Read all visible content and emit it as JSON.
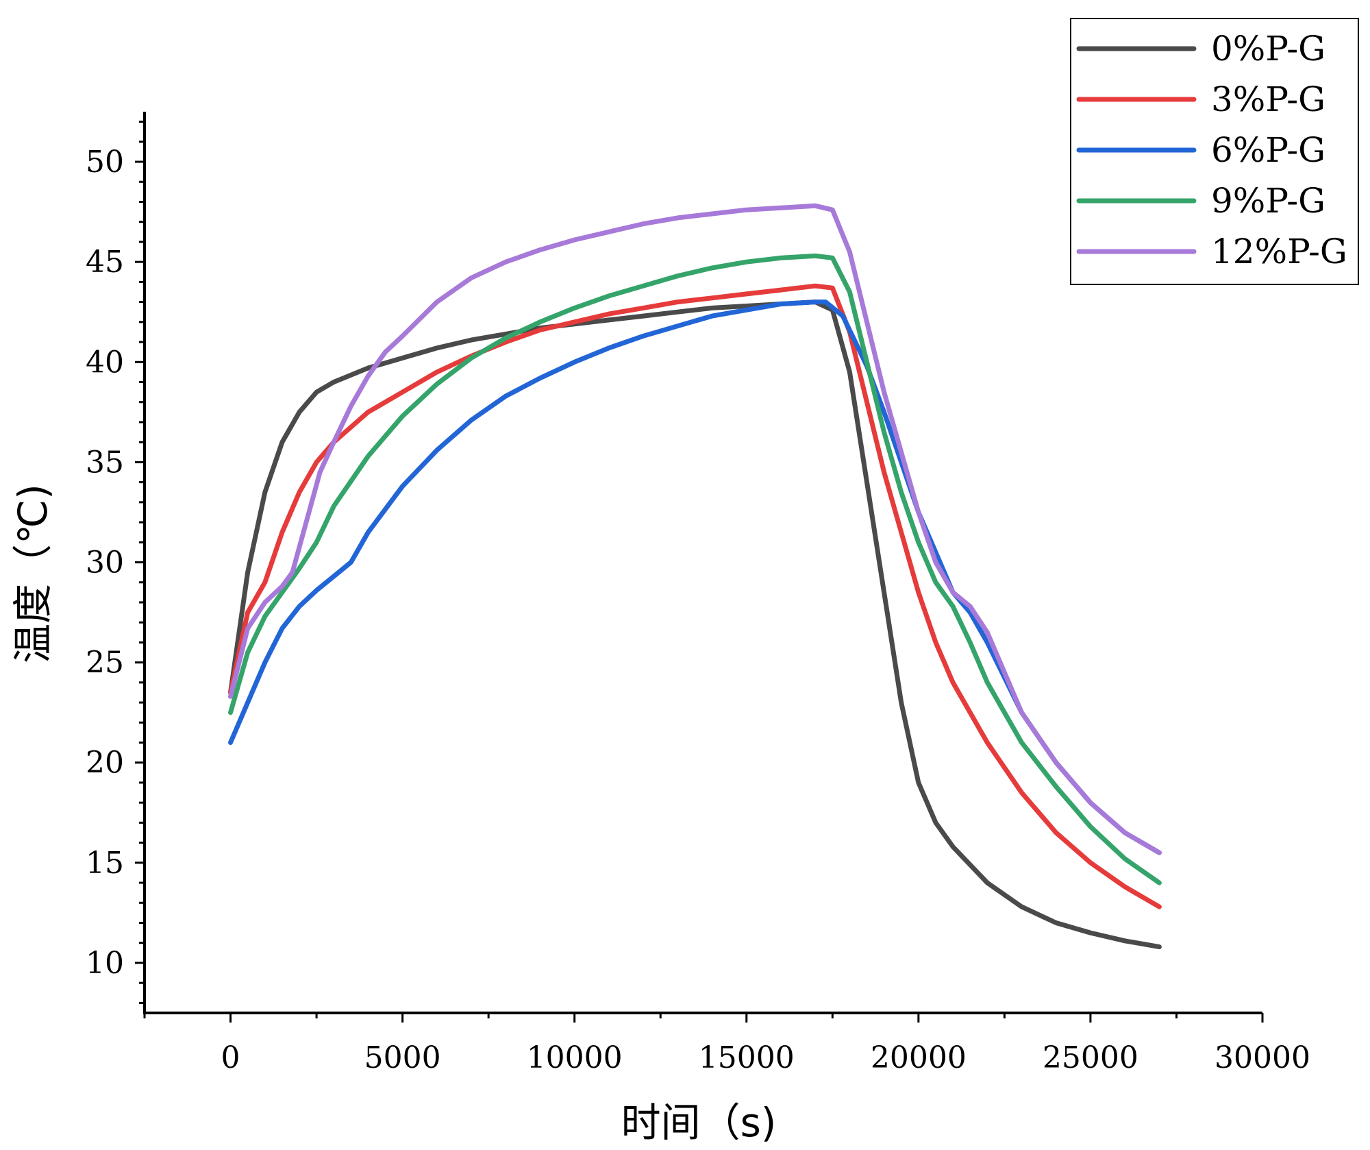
{
  "chart_data": {
    "type": "line",
    "title": "",
    "xlabel": "时间（s)",
    "ylabel": "温度（℃)",
    "xlim": [
      -2500,
      30000
    ],
    "ylim": [
      7.5,
      52.5
    ],
    "xticks": [
      0,
      5000,
      10000,
      15000,
      20000,
      25000,
      30000
    ],
    "yticks": [
      10,
      15,
      20,
      25,
      30,
      35,
      40,
      45,
      50
    ],
    "x_tick_labels": [
      "0",
      "5000",
      "10000",
      "15000",
      "20000",
      "25000",
      "30000"
    ],
    "y_tick_labels": [
      "10",
      "15",
      "20",
      "25",
      "30",
      "35",
      "40",
      "45",
      "50"
    ],
    "legend_position": "top-right",
    "series": [
      {
        "name": "0%P-G",
        "color": "#4a4a4a",
        "x": [
          0,
          500,
          1000,
          1500,
          2000,
          2500,
          3000,
          4000,
          5000,
          6000,
          7000,
          8000,
          9000,
          10000,
          11000,
          12000,
          13000,
          14000,
          15000,
          16000,
          17000,
          17500,
          18000,
          18500,
          19000,
          19500,
          20000,
          20500,
          21000,
          22000,
          23000,
          24000,
          25000,
          26000,
          27000
        ],
        "y": [
          23.5,
          29.5,
          33.5,
          36.0,
          37.5,
          38.5,
          39.0,
          39.7,
          40.2,
          40.7,
          41.1,
          41.4,
          41.7,
          41.9,
          42.1,
          42.3,
          42.5,
          42.7,
          42.8,
          42.9,
          43.0,
          42.6,
          39.5,
          34.0,
          28.5,
          23.0,
          19.0,
          17.0,
          15.8,
          14.0,
          12.8,
          12.0,
          11.5,
          11.1,
          10.8
        ]
      },
      {
        "name": "3%P-G",
        "color": "#e63b3b",
        "x": [
          0,
          500,
          1000,
          1500,
          2000,
          2500,
          3000,
          4000,
          5000,
          6000,
          7000,
          8000,
          9000,
          10000,
          11000,
          12000,
          13000,
          14000,
          15000,
          16000,
          17000,
          17500,
          18000,
          18500,
          19000,
          19500,
          20000,
          20500,
          21000,
          22000,
          23000,
          24000,
          25000,
          26000,
          27000
        ],
        "y": [
          23.5,
          27.5,
          29.0,
          31.5,
          33.5,
          35.0,
          36.0,
          37.5,
          38.5,
          39.5,
          40.3,
          41.0,
          41.6,
          42.0,
          42.4,
          42.7,
          43.0,
          43.2,
          43.4,
          43.6,
          43.8,
          43.7,
          41.5,
          38.0,
          34.5,
          31.5,
          28.5,
          26.0,
          24.0,
          21.0,
          18.5,
          16.5,
          15.0,
          13.8,
          12.8
        ]
      },
      {
        "name": "6%P-G",
        "color": "#2265d6",
        "x": [
          0,
          500,
          1000,
          1500,
          2000,
          2500,
          3000,
          3500,
          4000,
          5000,
          6000,
          7000,
          8000,
          9000,
          10000,
          11000,
          12000,
          13000,
          14000,
          15000,
          16000,
          17000,
          17300,
          17800,
          18500,
          19000,
          19500,
          20000,
          20500,
          21000,
          21500,
          22000,
          23000,
          24000,
          25000,
          26000,
          27000
        ],
        "y": [
          21.0,
          23.0,
          25.0,
          26.7,
          27.8,
          28.6,
          29.3,
          30.0,
          31.5,
          33.8,
          35.6,
          37.1,
          38.3,
          39.2,
          40.0,
          40.7,
          41.3,
          41.8,
          42.3,
          42.6,
          42.9,
          43.0,
          43.0,
          42.3,
          39.8,
          37.5,
          35.0,
          32.5,
          30.5,
          28.5,
          27.5,
          26.0,
          22.5,
          20.0,
          18.0,
          16.5,
          15.5
        ]
      },
      {
        "name": "9%P-G",
        "color": "#35a46a",
        "x": [
          0,
          500,
          1000,
          1500,
          2000,
          2500,
          3000,
          4000,
          5000,
          6000,
          7000,
          8000,
          9000,
          10000,
          11000,
          12000,
          13000,
          14000,
          15000,
          16000,
          17000,
          17500,
          18000,
          18500,
          19000,
          19500,
          20000,
          20500,
          21000,
          21500,
          22000,
          23000,
          24000,
          25000,
          26000,
          27000
        ],
        "y": [
          22.5,
          25.5,
          27.3,
          28.5,
          29.7,
          31.0,
          32.8,
          35.3,
          37.3,
          38.9,
          40.2,
          41.2,
          42.0,
          42.7,
          43.3,
          43.8,
          44.3,
          44.7,
          45.0,
          45.2,
          45.3,
          45.2,
          43.5,
          40.0,
          36.5,
          33.5,
          31.0,
          29.0,
          27.8,
          26.0,
          24.0,
          21.0,
          18.8,
          16.8,
          15.2,
          14.0
        ]
      },
      {
        "name": "12%P-G",
        "color": "#a77ad9",
        "x": [
          0,
          500,
          1000,
          1500,
          1800,
          2200,
          2600,
          3000,
          3500,
          4000,
          4500,
          5000,
          6000,
          7000,
          8000,
          9000,
          10000,
          11000,
          12000,
          13000,
          14000,
          15000,
          16000,
          17000,
          17500,
          18000,
          18500,
          19000,
          19500,
          20000,
          20500,
          21000,
          21500,
          22000,
          23000,
          24000,
          25000,
          26000,
          27000
        ],
        "y": [
          23.3,
          26.7,
          28.0,
          28.8,
          29.5,
          32.0,
          34.5,
          36.0,
          37.8,
          39.3,
          40.5,
          41.3,
          43.0,
          44.2,
          45.0,
          45.6,
          46.1,
          46.5,
          46.9,
          47.2,
          47.4,
          47.6,
          47.7,
          47.8,
          47.6,
          45.5,
          42.0,
          38.5,
          35.5,
          32.5,
          30.0,
          28.5,
          27.8,
          26.5,
          22.5,
          20.0,
          18.0,
          16.5,
          15.5
        ]
      }
    ]
  }
}
